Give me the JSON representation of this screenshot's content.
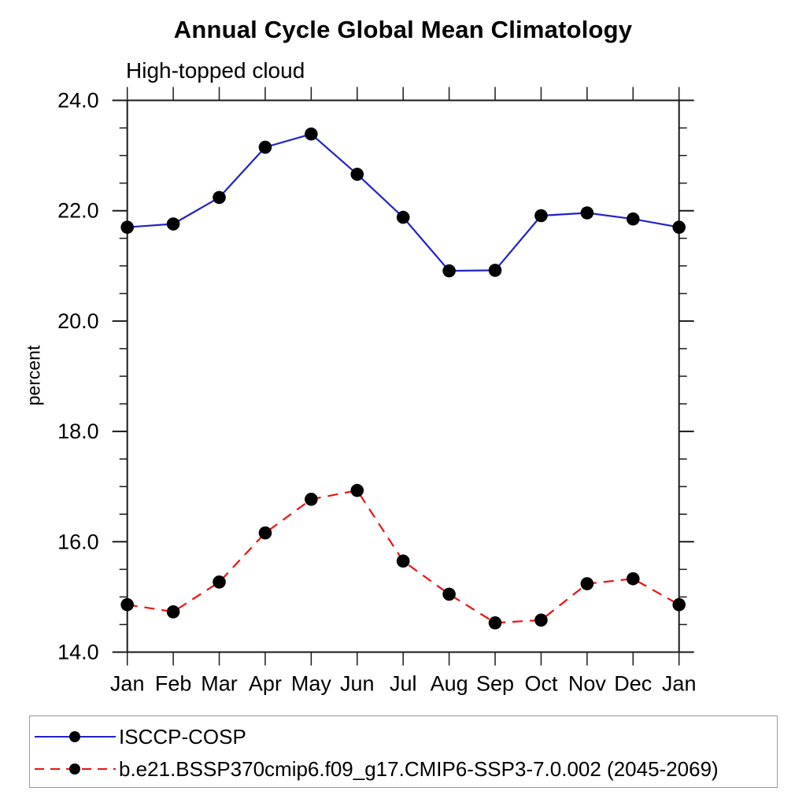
{
  "title": "Annual Cycle Global Mean Climatology",
  "subtitle": "High-topped cloud",
  "ylabel": "percent",
  "colors": {
    "obs_line": "#2222cc",
    "model_line": "#ee1111",
    "marker": "#000000",
    "axis": "#1a1a1a",
    "legend_border": "#999999"
  },
  "legend": {
    "entries": [
      {
        "label": "ISCCP-COSP",
        "color": "#2222cc",
        "line_style": "solid"
      },
      {
        "label": "b.e21.BSSP370cmip6.f09_g17.CMIP6-SSP3-7.0.002 (2045-2069)",
        "color": "#ee1111",
        "line_style": "dashed"
      }
    ]
  },
  "chart_data": {
    "type": "line",
    "title": "Annual Cycle Global Mean Climatology",
    "subtitle": "High-topped cloud",
    "ylabel": "percent",
    "categories": [
      "Jan",
      "Feb",
      "Mar",
      "Apr",
      "May",
      "Jun",
      "Jul",
      "Aug",
      "Sep",
      "Oct",
      "Nov",
      "Dec",
      "Jan"
    ],
    "ylim": [
      14.0,
      24.0
    ],
    "ytick_major_step": 2.0,
    "ytick_minor_step": 0.5,
    "ytick_labels": [
      "14.0",
      "16.0",
      "18.0",
      "20.0",
      "22.0",
      "24.0"
    ],
    "grid": false,
    "legend_position": "bottom-left-box",
    "marker": "filled-circle",
    "marker_color": "#000000",
    "series": [
      {
        "name": "ISCCP-COSP",
        "color": "#2222cc",
        "line_style": "solid",
        "values": [
          21.7,
          21.76,
          22.24,
          23.15,
          23.39,
          22.66,
          21.88,
          20.91,
          20.92,
          21.91,
          21.96,
          21.85,
          21.7
        ]
      },
      {
        "name": "b.e21.BSSP370cmip6.f09_g17.CMIP6-SSP3-7.0.002 (2045-2069)",
        "color": "#ee1111",
        "line_style": "dashed",
        "values": [
          14.86,
          14.73,
          15.27,
          16.16,
          16.77,
          16.93,
          15.65,
          15.05,
          14.53,
          14.58,
          15.24,
          15.33,
          14.86
        ]
      }
    ]
  }
}
